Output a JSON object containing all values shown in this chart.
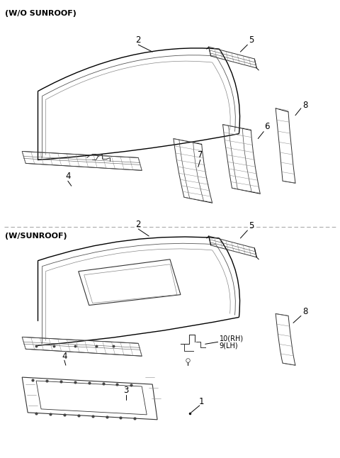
{
  "background_color": "#ffffff",
  "section1_label": "(W/O SUNROOF)",
  "section2_label": "(W/SUNROOF)",
  "line_color": "#000000",
  "text_color": "#000000",
  "label_fontsize": 8.5,
  "section_fontsize": 8.0,
  "hatch_color": "#888888",
  "divider_color": "#aaaaaa"
}
